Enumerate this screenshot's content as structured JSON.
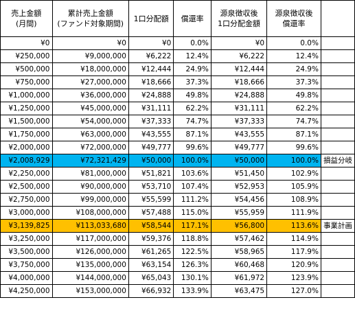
{
  "headers": [
    {
      "line1": "売上金額",
      "line2": "(月間)"
    },
    {
      "line1": "累計売上金額",
      "line2": "(ファンド対象期間)"
    },
    {
      "line1": "1口分配額",
      "line2": ""
    },
    {
      "line1": "償還率",
      "line2": ""
    },
    {
      "line1": "源泉徴収後",
      "line2": "1口分配金額"
    },
    {
      "line1": "源泉徴収後",
      "line2": "償還率"
    }
  ],
  "rows": [
    {
      "sales": "¥0",
      "cumulative": "¥0",
      "dist": "¥0",
      "rate": "0.0%",
      "net_dist": "¥0",
      "net_rate": "0.0%",
      "note": "",
      "highlight": ""
    },
    {
      "sales": "¥250,000",
      "cumulative": "¥9,000,000",
      "dist": "¥6,222",
      "rate": "12.4%",
      "net_dist": "¥6,222",
      "net_rate": "12.4%",
      "note": "",
      "highlight": ""
    },
    {
      "sales": "¥500,000",
      "cumulative": "¥18,000,000",
      "dist": "¥12,444",
      "rate": "24.9%",
      "net_dist": "¥12,444",
      "net_rate": "24.9%",
      "note": "",
      "highlight": ""
    },
    {
      "sales": "¥750,000",
      "cumulative": "¥27,000,000",
      "dist": "¥18,666",
      "rate": "37.3%",
      "net_dist": "¥18,666",
      "net_rate": "37.3%",
      "note": "",
      "highlight": ""
    },
    {
      "sales": "¥1,000,000",
      "cumulative": "¥36,000,000",
      "dist": "¥24,888",
      "rate": "49.8%",
      "net_dist": "¥24,888",
      "net_rate": "49.8%",
      "note": "",
      "highlight": ""
    },
    {
      "sales": "¥1,250,000",
      "cumulative": "¥45,000,000",
      "dist": "¥31,111",
      "rate": "62.2%",
      "net_dist": "¥31,111",
      "net_rate": "62.2%",
      "note": "",
      "highlight": ""
    },
    {
      "sales": "¥1,500,000",
      "cumulative": "¥54,000,000",
      "dist": "¥37,333",
      "rate": "74.7%",
      "net_dist": "¥37,333",
      "net_rate": "74.7%",
      "note": "",
      "highlight": ""
    },
    {
      "sales": "¥1,750,000",
      "cumulative": "¥63,000,000",
      "dist": "¥43,555",
      "rate": "87.1%",
      "net_dist": "¥43,555",
      "net_rate": "87.1%",
      "note": "",
      "highlight": ""
    },
    {
      "sales": "¥2,000,000",
      "cumulative": "¥72,000,000",
      "dist": "¥49,777",
      "rate": "99.6%",
      "net_dist": "¥49,777",
      "net_rate": "99.6%",
      "note": "",
      "highlight": ""
    },
    {
      "sales": "¥2,008,929",
      "cumulative": "¥72,321,429",
      "dist": "¥50,000",
      "rate": "100.0%",
      "net_dist": "¥50,000",
      "net_rate": "100.0%",
      "note": "損益分岐",
      "highlight": "#00b4f0"
    },
    {
      "sales": "¥2,250,000",
      "cumulative": "¥81,000,000",
      "dist": "¥51,821",
      "rate": "103.6%",
      "net_dist": "¥51,450",
      "net_rate": "102.9%",
      "note": "",
      "highlight": ""
    },
    {
      "sales": "¥2,500,000",
      "cumulative": "¥90,000,000",
      "dist": "¥53,710",
      "rate": "107.4%",
      "net_dist": "¥52,953",
      "net_rate": "105.9%",
      "note": "",
      "highlight": ""
    },
    {
      "sales": "¥2,750,000",
      "cumulative": "¥99,000,000",
      "dist": "¥55,599",
      "rate": "111.2%",
      "net_dist": "¥54,456",
      "net_rate": "108.9%",
      "note": "",
      "highlight": ""
    },
    {
      "sales": "¥3,000,000",
      "cumulative": "¥108,000,000",
      "dist": "¥57,488",
      "rate": "115.0%",
      "net_dist": "¥55,959",
      "net_rate": "111.9%",
      "note": "",
      "highlight": ""
    },
    {
      "sales": "¥3,139,825",
      "cumulative": "¥113,033,680",
      "dist": "¥58,544",
      "rate": "117.1%",
      "net_dist": "¥56,800",
      "net_rate": "113.6%",
      "note": "事業計画",
      "highlight": "#ffc000"
    },
    {
      "sales": "¥3,250,000",
      "cumulative": "¥117,000,000",
      "dist": "¥59,376",
      "rate": "118.8%",
      "net_dist": "¥57,462",
      "net_rate": "114.9%",
      "note": "",
      "highlight": ""
    },
    {
      "sales": "¥3,500,000",
      "cumulative": "¥126,000,000",
      "dist": "¥61,265",
      "rate": "122.5%",
      "net_dist": "¥58,965",
      "net_rate": "117.9%",
      "note": "",
      "highlight": ""
    },
    {
      "sales": "¥3,750,000",
      "cumulative": "¥135,000,000",
      "dist": "¥63,154",
      "rate": "126.3%",
      "net_dist": "¥60,468",
      "net_rate": "120.9%",
      "note": "",
      "highlight": ""
    },
    {
      "sales": "¥4,000,000",
      "cumulative": "¥144,000,000",
      "dist": "¥65,043",
      "rate": "130.1%",
      "net_dist": "¥61,972",
      "net_rate": "123.9%",
      "note": "",
      "highlight": ""
    },
    {
      "sales": "¥4,250,000",
      "cumulative": "¥153,000,000",
      "dist": "¥66,932",
      "rate": "133.9%",
      "net_dist": "¥63,475",
      "net_rate": "127.0%",
      "note": "",
      "highlight": ""
    }
  ]
}
